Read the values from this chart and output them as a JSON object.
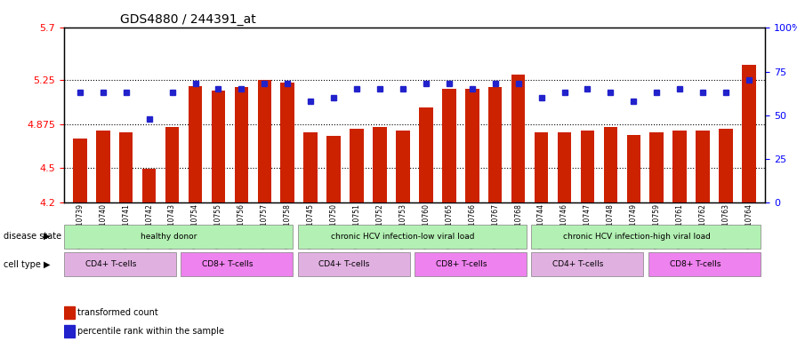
{
  "title": "GDS4880 / 244391_at",
  "samples": [
    "GSM1210739",
    "GSM1210740",
    "GSM1210741",
    "GSM1210742",
    "GSM1210743",
    "GSM1210754",
    "GSM1210755",
    "GSM1210756",
    "GSM1210757",
    "GSM1210758",
    "GSM1210745",
    "GSM1210750",
    "GSM1210751",
    "GSM1210752",
    "GSM1210753",
    "GSM1210760",
    "GSM1210765",
    "GSM1210766",
    "GSM1210767",
    "GSM1210768",
    "GSM1210744",
    "GSM1210746",
    "GSM1210747",
    "GSM1210748",
    "GSM1210749",
    "GSM1210759",
    "GSM1210761",
    "GSM1210762",
    "GSM1210763",
    "GSM1210764"
  ],
  "red_values": [
    4.75,
    4.82,
    4.8,
    4.49,
    4.85,
    5.2,
    5.16,
    5.19,
    5.25,
    5.23,
    4.8,
    4.77,
    4.83,
    4.85,
    4.82,
    5.02,
    5.18,
    5.18,
    5.19,
    5.3,
    4.8,
    4.8,
    4.82,
    4.85,
    4.78,
    4.8,
    4.82,
    4.82,
    4.83,
    5.38
  ],
  "blue_values": [
    63,
    63,
    63,
    48,
    63,
    68,
    65,
    65,
    68,
    68,
    58,
    60,
    65,
    65,
    65,
    68,
    68,
    65,
    68,
    68,
    60,
    63,
    65,
    63,
    58,
    63,
    65,
    63,
    63,
    70
  ],
  "ylim_left": [
    4.2,
    5.7
  ],
  "ylim_right": [
    0,
    100
  ],
  "yticks_left": [
    4.2,
    4.5,
    4.875,
    5.25,
    5.7
  ],
  "ytick_labels_left": [
    "4.2",
    "4.5",
    "4.875",
    "5.25",
    "5.7"
  ],
  "yticks_right": [
    0,
    25,
    50,
    75,
    100
  ],
  "ytick_labels_right": [
    "0",
    "25",
    "50",
    "75",
    "100%"
  ],
  "hlines": [
    4.875,
    5.25,
    4.5
  ],
  "bar_color": "#cc2200",
  "dot_color": "#2222cc",
  "bar_bottom": 4.2,
  "disease_groups": [
    {
      "label": "healthy donor",
      "start": 0,
      "end": 9,
      "color": "#90ee90"
    },
    {
      "label": "chronic HCV infection-low viral load",
      "start": 10,
      "end": 19,
      "color": "#90ee90"
    },
    {
      "label": "chronic HCV infection-high viral load",
      "start": 20,
      "end": 29,
      "color": "#90ee90"
    }
  ],
  "cell_type_groups": [
    {
      "label": "CD4+ T-cells",
      "start": 0,
      "end": 4,
      "color": "#da70d6"
    },
    {
      "label": "CD8+ T-cells",
      "start": 5,
      "end": 9,
      "color": "#da70d6"
    },
    {
      "label": "CD4+ T-cells",
      "start": 10,
      "end": 14,
      "color": "#da70d6"
    },
    {
      "label": "CD8+ T-cells",
      "start": 15,
      "end": 19,
      "color": "#da70d6"
    },
    {
      "label": "CD4+ T-cells",
      "start": 20,
      "end": 24,
      "color": "#da70d6"
    },
    {
      "label": "CD8+ T-cells",
      "start": 25,
      "end": 29,
      "color": "#da70d6"
    }
  ],
  "disease_label": "disease state",
  "cell_type_label": "cell type",
  "legend_red": "transformed count",
  "legend_blue": "percentile rank within the sample"
}
